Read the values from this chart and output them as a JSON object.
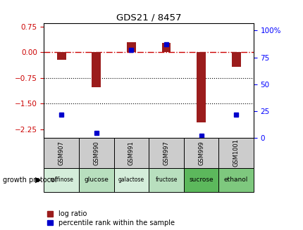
{
  "title": "GDS21 / 8457",
  "samples": [
    "GSM907",
    "GSM990",
    "GSM991",
    "GSM997",
    "GSM999",
    "GSM1001"
  ],
  "protocols": [
    "raffinose",
    "glucose",
    "galactose",
    "fructose",
    "sucrose",
    "ethanol"
  ],
  "log_ratios": [
    -0.22,
    -1.02,
    0.3,
    0.28,
    -2.05,
    -0.42
  ],
  "percentiles": [
    22,
    5,
    82,
    87,
    2,
    22
  ],
  "left_ylim": [
    -2.5,
    0.85
  ],
  "right_ylim": [
    0,
    107
  ],
  "left_yticks": [
    -2.25,
    -1.5,
    -0.75,
    0,
    0.75
  ],
  "right_yticks": [
    0,
    25,
    50,
    75,
    100
  ],
  "bar_color": "#9B1C1C",
  "percentile_color": "#0000CC",
  "zero_line_color": "#CC0000",
  "dotted_line_color": "#000000",
  "bg_color": "#FFFFFF",
  "protocol_colors": [
    "#d4edda",
    "#b8dfbe",
    "#d4edda",
    "#b8dfbe",
    "#5cb85c",
    "#7ec87e"
  ],
  "sample_label_bg": "#cccccc",
  "growth_protocol_label": "growth protocol",
  "legend_log_ratio": "log ratio",
  "legend_percentile": "percentile rank within the sample",
  "bar_width": 0.4
}
